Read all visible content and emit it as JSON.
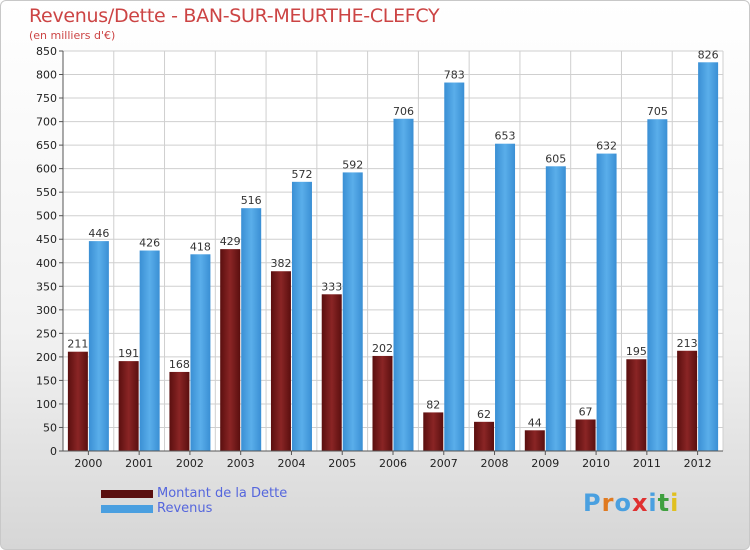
{
  "title": "Revenus/Dette - BAN-SUR-MEURTHE-CLEFCY",
  "subtitle": "(en milliers d'€)",
  "chart_data": {
    "type": "bar",
    "categories": [
      "2000",
      "2001",
      "2002",
      "2003",
      "2004",
      "2005",
      "2006",
      "2007",
      "2008",
      "2009",
      "2010",
      "2011",
      "2012"
    ],
    "series": [
      {
        "name": "Montant de la Dette",
        "color": "#7a1a1a",
        "values": [
          211,
          191,
          168,
          429,
          382,
          333,
          202,
          82,
          62,
          44,
          67,
          195,
          213
        ]
      },
      {
        "name": "Revenus",
        "color": "#4a9fe0",
        "values": [
          446,
          426,
          418,
          516,
          572,
          592,
          706,
          783,
          653,
          605,
          632,
          705,
          826
        ]
      }
    ],
    "ylim": [
      0,
      850
    ],
    "yticks": [
      0,
      50,
      100,
      150,
      200,
      250,
      300,
      350,
      400,
      450,
      500,
      550,
      600,
      650,
      700,
      750,
      800,
      850
    ],
    "grid": true,
    "legend_position": "bottom-left"
  },
  "legend": {
    "debt_label": "Montant de la Dette",
    "revenue_label": "Revenus",
    "debt_color": "#5a0f0f",
    "revenue_color": "#4a9fe0"
  },
  "logo": {
    "letters": [
      "P",
      "r",
      "o",
      "x",
      "i",
      "t",
      "i"
    ],
    "colors": [
      "#4aa0e0",
      "#e07a20",
      "#4aa0e0",
      "#e03030",
      "#4aa0e0",
      "#40a040",
      "#e0c020"
    ]
  }
}
